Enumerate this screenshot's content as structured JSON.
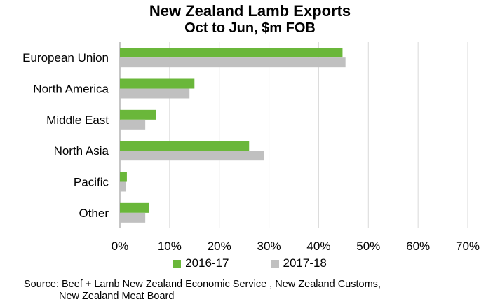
{
  "chart_data": {
    "type": "bar",
    "orientation": "horizontal",
    "title": "New Zealand Lamb Exports",
    "subtitle": "Oct to Jun, $m FOB",
    "categories": [
      "European Union",
      "North America",
      "Middle East",
      "North Asia",
      "Pacific",
      "Other"
    ],
    "series": [
      {
        "name": "2016-17",
        "color": "#6ab73a",
        "values": [
          44.8,
          15.0,
          7.2,
          26.0,
          1.4,
          5.8
        ]
      },
      {
        "name": "2017-18",
        "color": "#c0c0c0",
        "values": [
          45.4,
          14.0,
          5.1,
          29.0,
          1.2,
          5.1
        ]
      }
    ],
    "xlim": [
      0,
      70
    ],
    "xticks": [
      0,
      10,
      20,
      30,
      40,
      50,
      60,
      70
    ],
    "xtick_labels": [
      "0%",
      "10%",
      "20%",
      "30%",
      "40%",
      "50%",
      "60%",
      "70%"
    ],
    "gridlines": true,
    "legend_position": "bottom"
  },
  "source": {
    "line1": "Source: Beef + Lamb New Zealand Economic Service , New Zealand Customs,",
    "line2": "New Zealand Meat Board"
  }
}
